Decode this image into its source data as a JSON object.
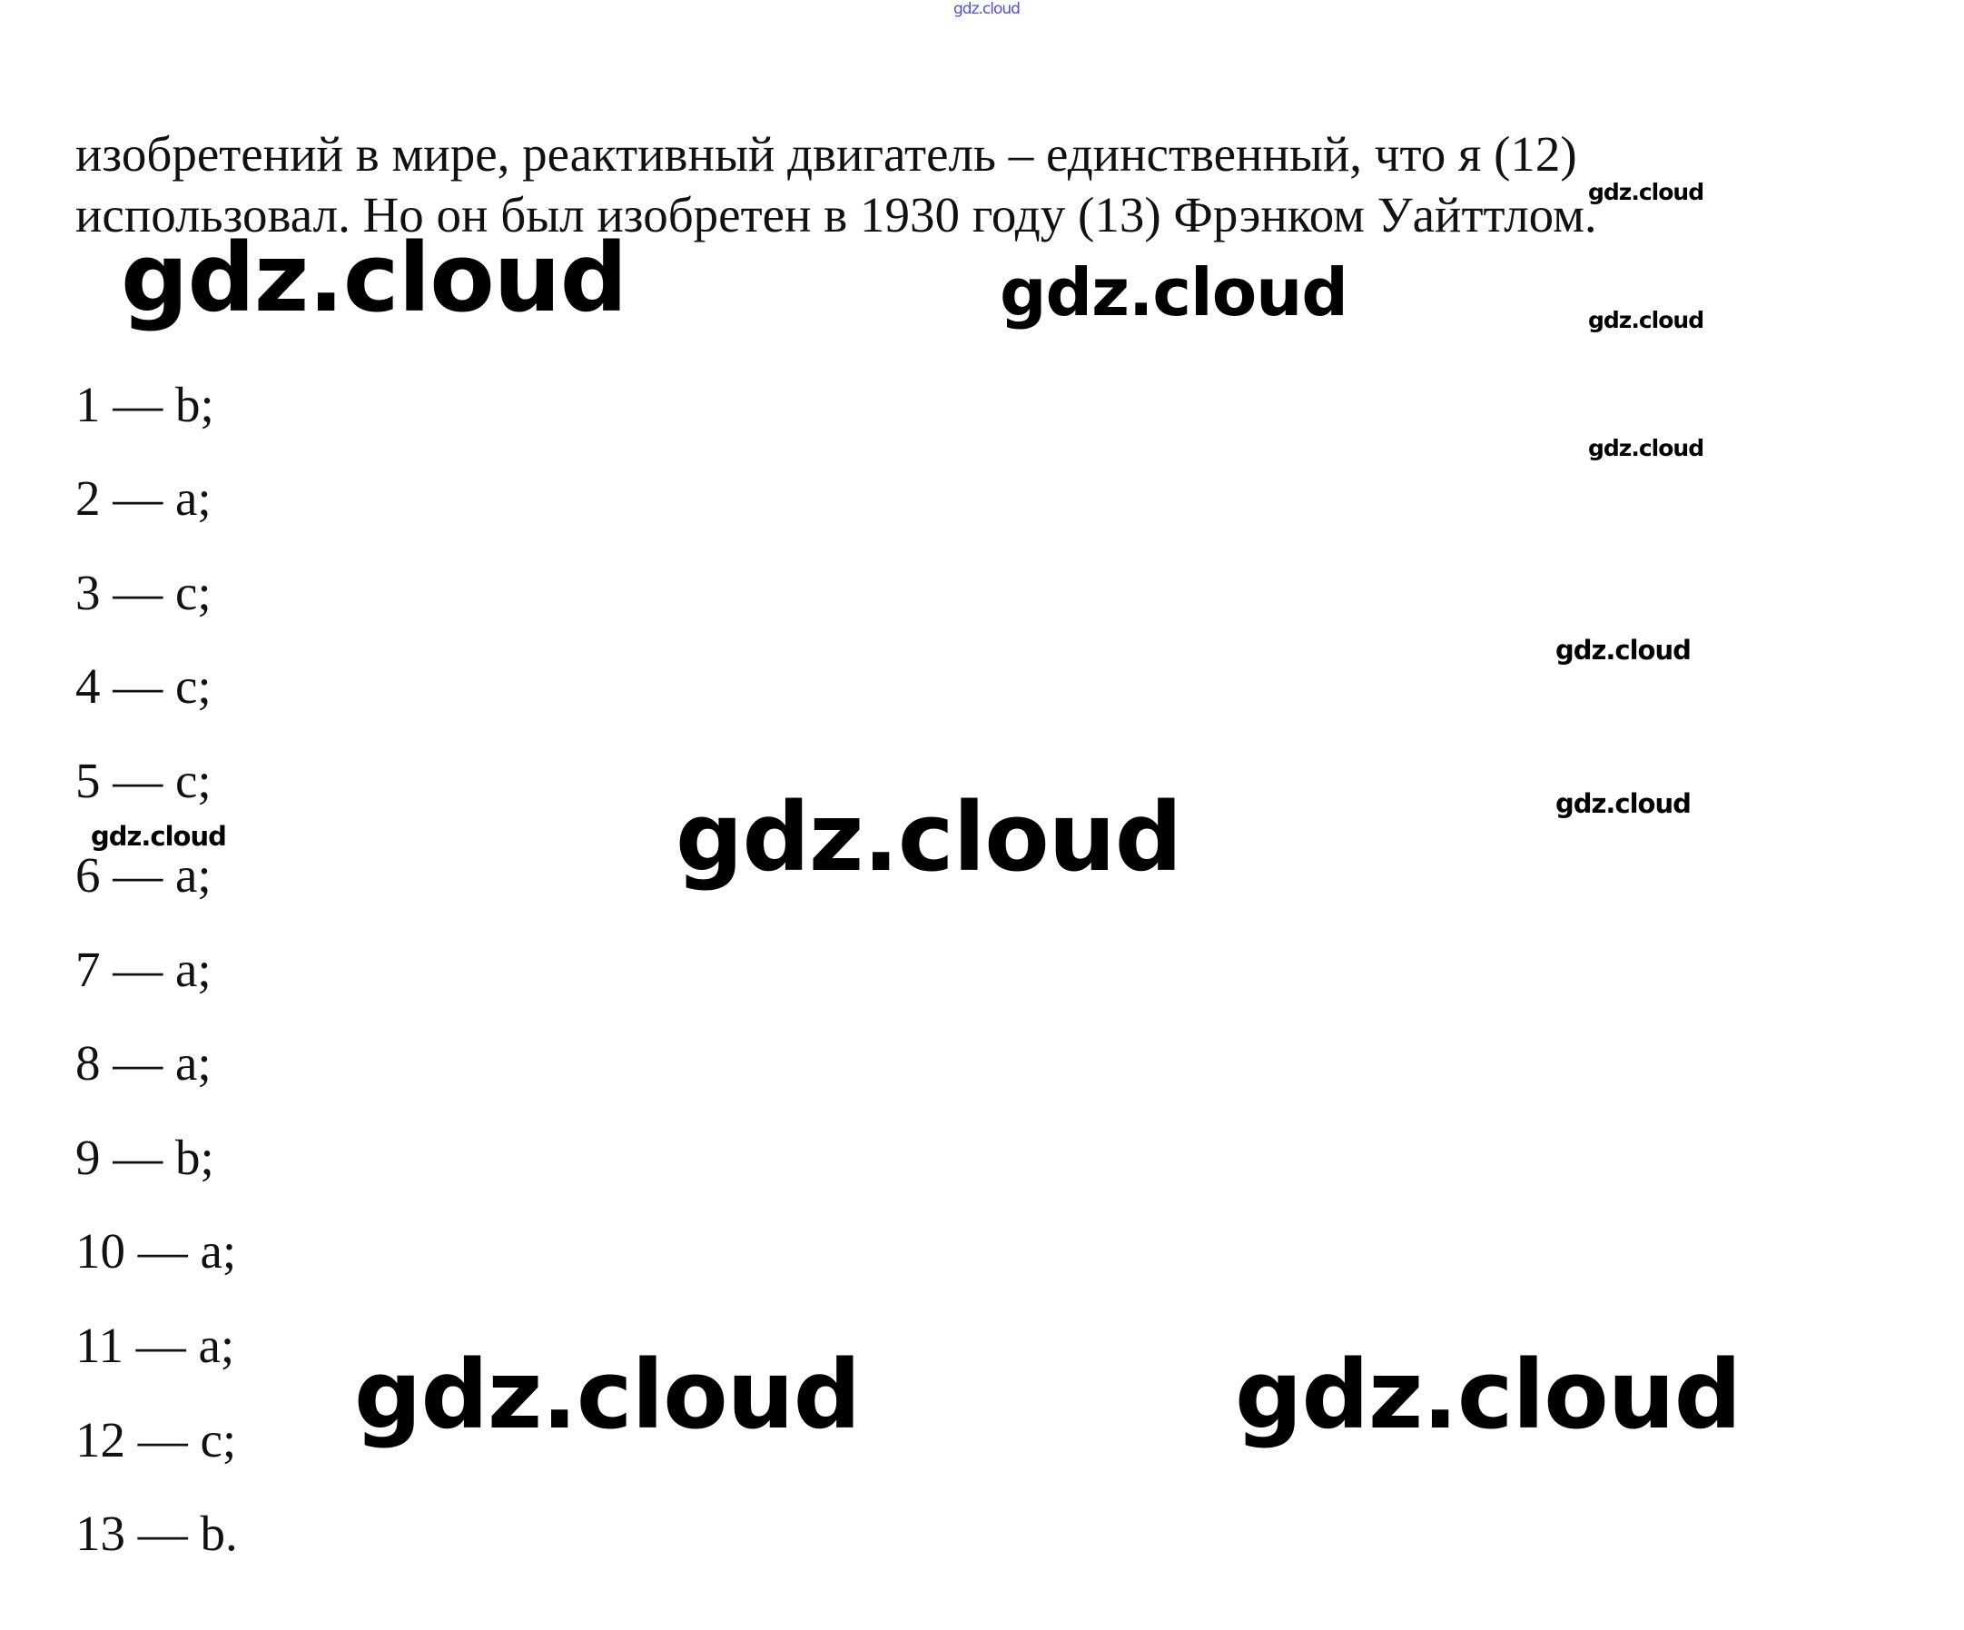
{
  "paragraph": {
    "line1": "изобретений в мире, реактивный двигатель – единственный, что я (12)",
    "line2": "использовал. Но он был изобретен в 1930 году (13) Фрэнком Уайттлом."
  },
  "answers": [
    "1 — b;",
    "2 — a;",
    "3 — c;",
    "4 — c;",
    "5 — c;",
    "6 — a;",
    "7 — a;",
    "8 — a;",
    "9 — b;",
    "10 — a;",
    "11 — a;",
    "12 — c;",
    "13 — b."
  ],
  "watermark": "gdz.cloud",
  "colors": {
    "text": "#111111",
    "top_watermark": "#5050d8"
  }
}
